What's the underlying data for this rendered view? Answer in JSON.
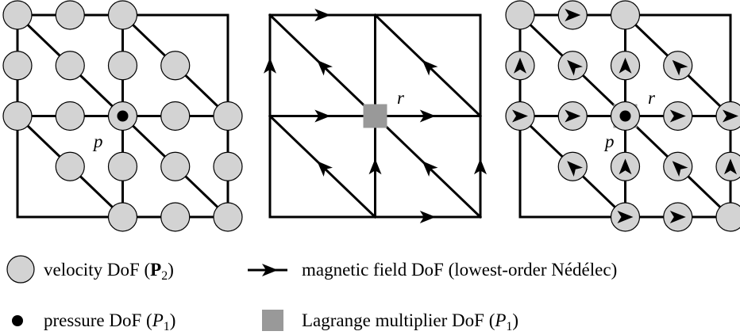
{
  "labels": {
    "pressure_point": "p",
    "multiplier_point": "r"
  },
  "legend": [
    {
      "text": "velocity DoF (",
      "symbol": "P",
      "subscript": "2",
      "close": ")"
    },
    {
      "text": "magnetic field DoF (lowest-order Nédélec)"
    },
    {
      "text": "pressure DoF (",
      "symbol": "P",
      "subscript": "1",
      "close": ")"
    },
    {
      "text": "Lagrange multiplier DoF (",
      "symbol": "P",
      "subscript": "1",
      "close": ")"
    }
  ]
}
